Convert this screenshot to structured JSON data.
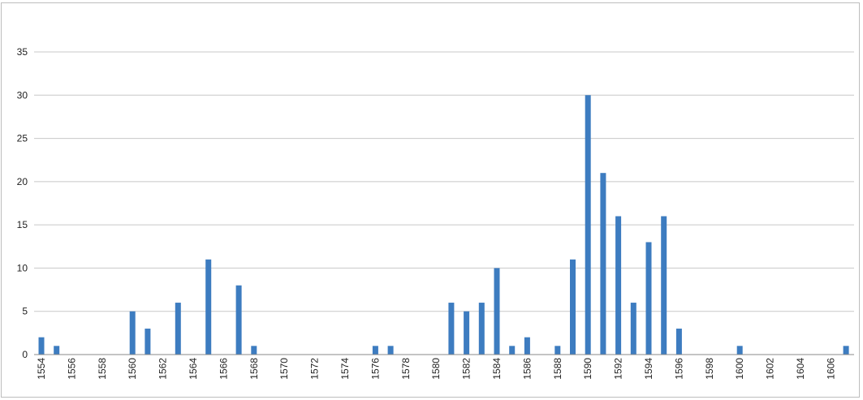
{
  "chart_data": {
    "type": "bar",
    "title": "",
    "xlabel": "",
    "ylabel": "",
    "ylim": [
      0,
      35
    ],
    "yticks": [
      0,
      5,
      10,
      15,
      20,
      25,
      30,
      35
    ],
    "x_range": [
      1554,
      1607
    ],
    "xtick_labels": [
      1554,
      1556,
      1558,
      1560,
      1562,
      1564,
      1566,
      1568,
      1570,
      1572,
      1574,
      1576,
      1578,
      1580,
      1582,
      1584,
      1586,
      1588,
      1590,
      1592,
      1594,
      1596,
      1598,
      1600,
      1602,
      1604,
      1606
    ],
    "grid": true,
    "legend": "none",
    "bar_color": "#3d7cc0",
    "grid_color": "#c8c8c8",
    "categories": [
      1554,
      1555,
      1560,
      1561,
      1563,
      1565,
      1567,
      1568,
      1576,
      1577,
      1581,
      1582,
      1583,
      1584,
      1585,
      1586,
      1588,
      1589,
      1590,
      1591,
      1592,
      1593,
      1594,
      1595,
      1596,
      1600,
      1607
    ],
    "values": [
      2,
      1,
      5,
      3,
      6,
      11,
      8,
      1,
      1,
      1,
      6,
      5,
      6,
      10,
      1,
      2,
      1,
      11,
      30,
      21,
      16,
      6,
      13,
      16,
      3,
      1,
      1
    ]
  }
}
